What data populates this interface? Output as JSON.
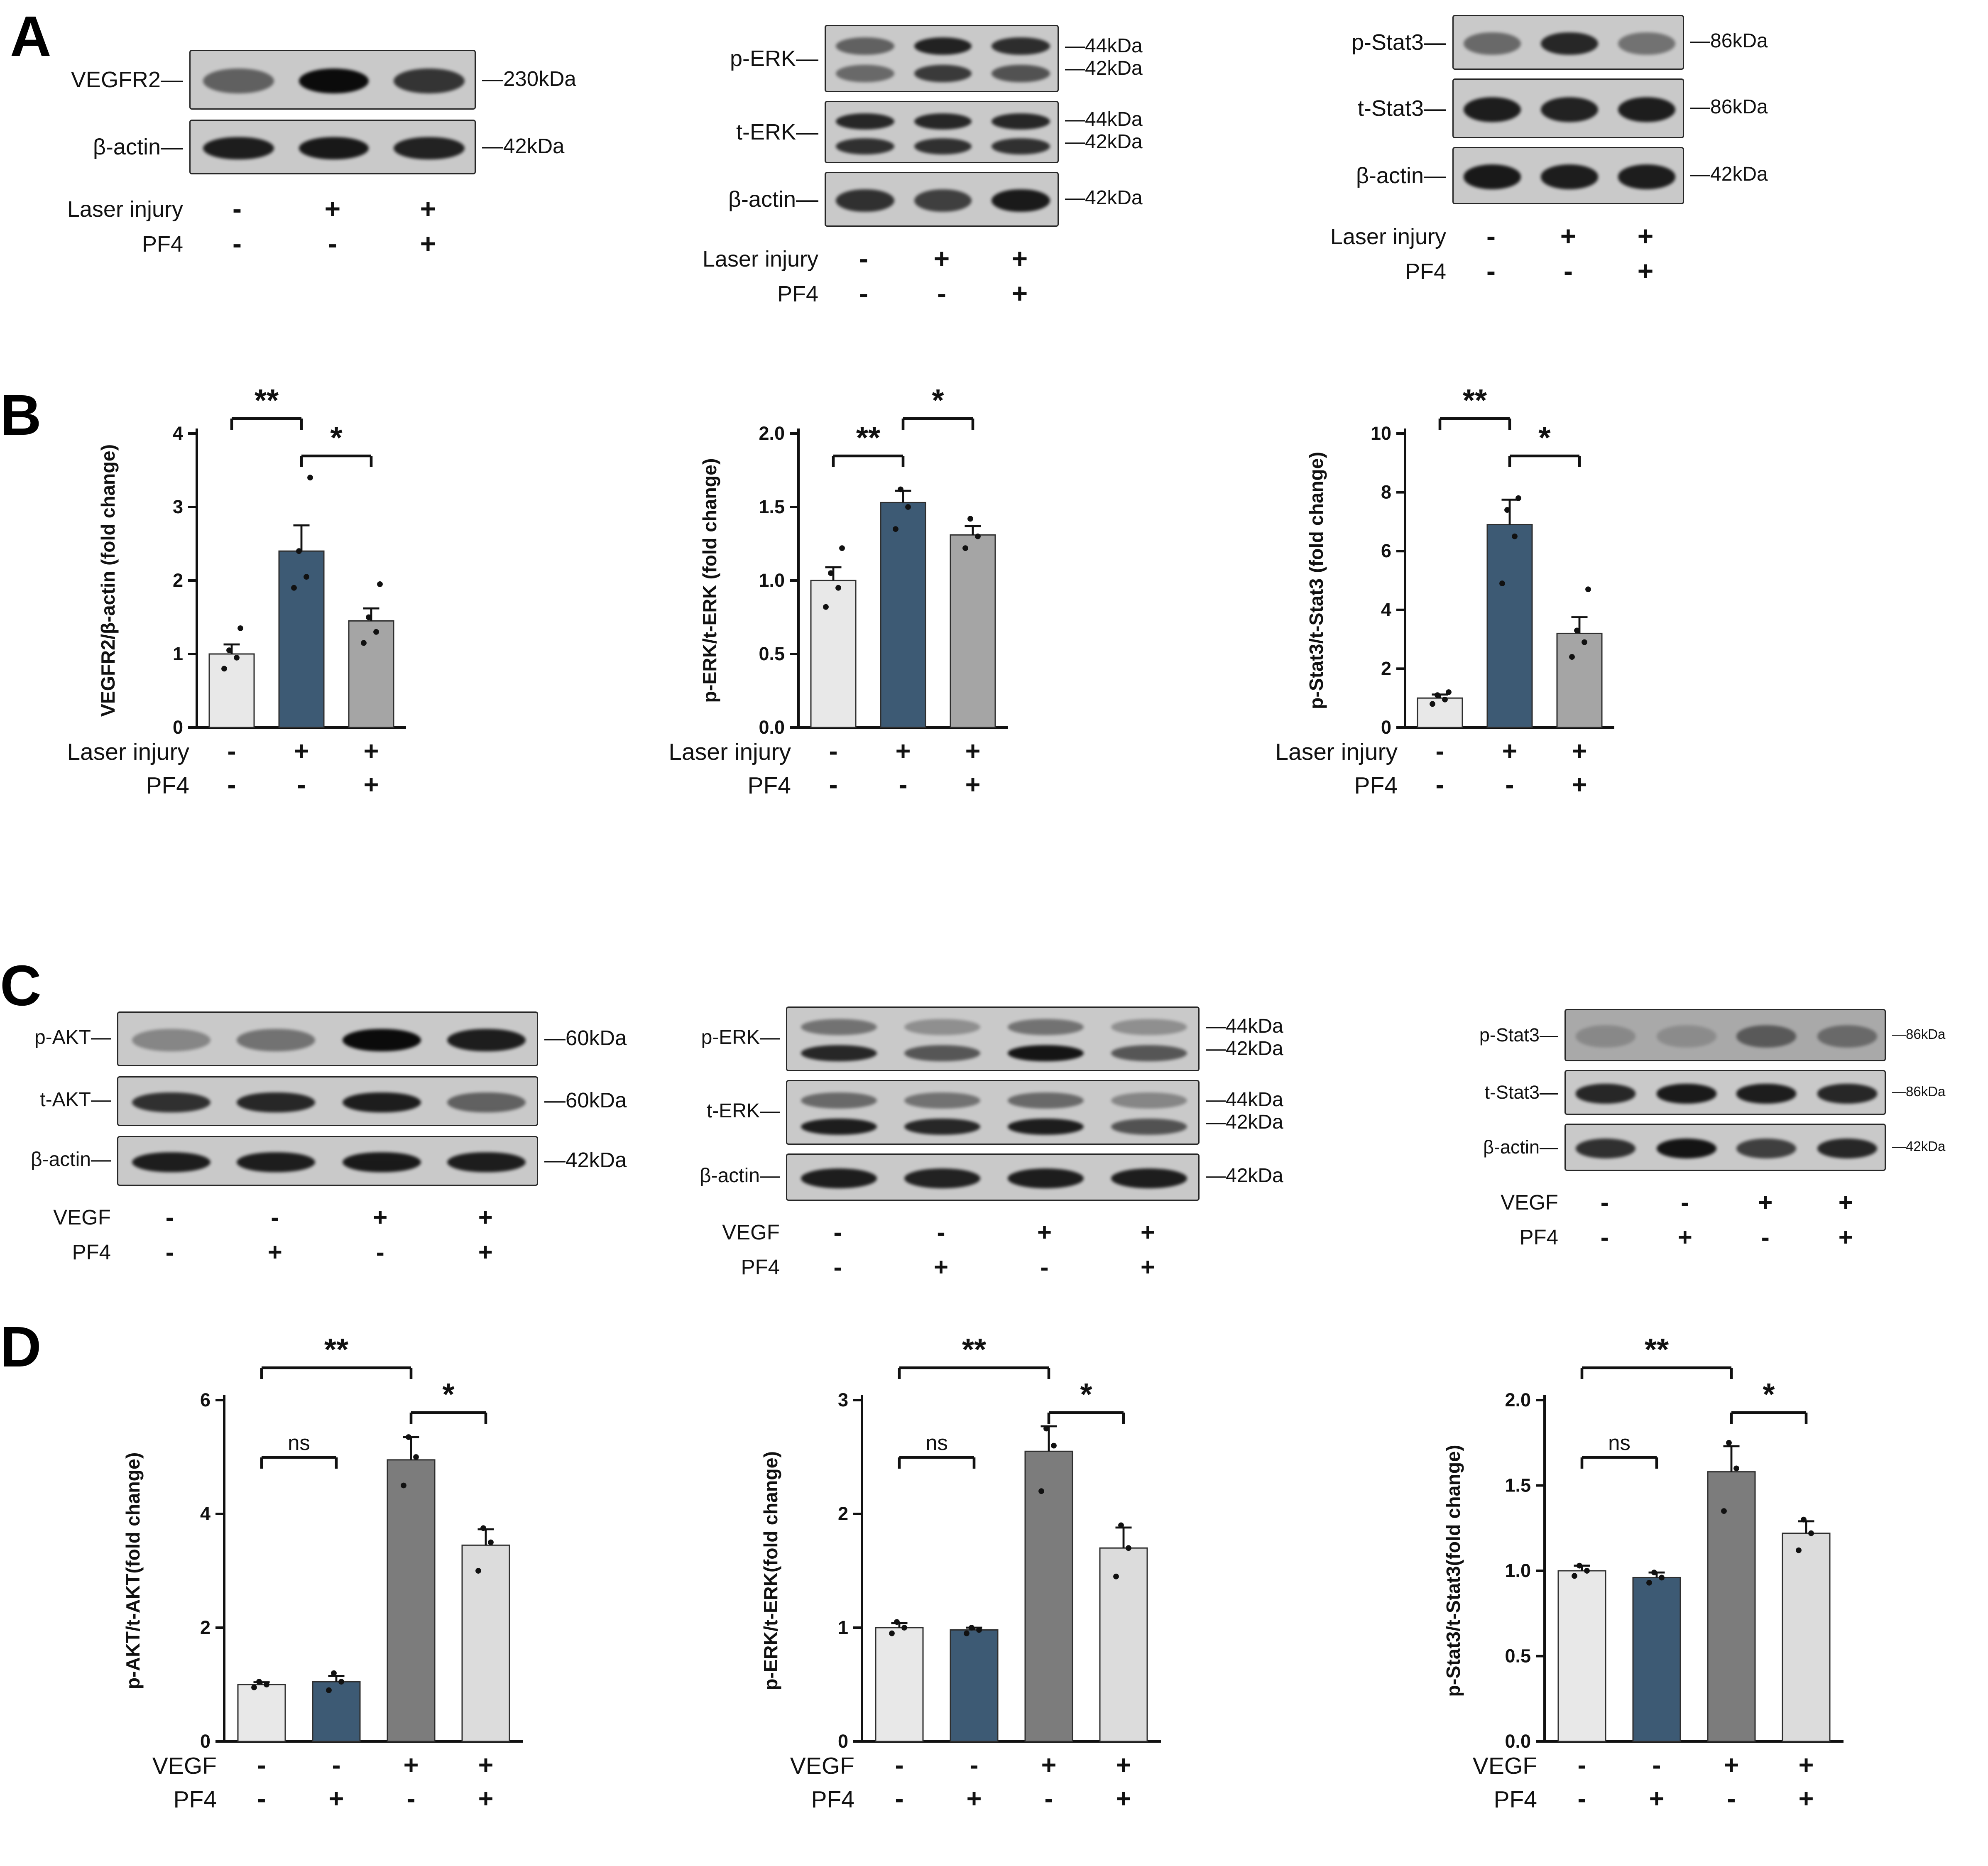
{
  "panel_labels": {
    "A": "A",
    "B": "B",
    "C": "C",
    "D": "D"
  },
  "western_blots": [
    {
      "name": "VEGFR2 laser injury blot",
      "rows": [
        {
          "label": "VEGFR2—",
          "kda": [
            "—230kDa"
          ],
          "band_intensities": [
            [
              0.55
            ],
            [
              1.0
            ],
            [
              0.78
            ]
          ]
        },
        {
          "label": "β-actin—",
          "kda": [
            "—42kDa"
          ],
          "band_intensities": [
            [
              0.9
            ],
            [
              0.93
            ],
            [
              0.88
            ]
          ]
        }
      ],
      "conditions": [
        {
          "name": "Laser injury",
          "values": [
            "-",
            "+",
            "+"
          ]
        },
        {
          "name": "PF4",
          "values": [
            "-",
            "-",
            "+"
          ]
        }
      ]
    },
    {
      "name": "ERK laser injury blot",
      "rows": [
        {
          "label": "p-ERK—",
          "kda": [
            "—44kDa",
            "—42kDa"
          ],
          "band_intensities": [
            [
              0.55,
              0.5
            ],
            [
              0.88,
              0.75
            ],
            [
              0.82,
              0.62
            ]
          ]
        },
        {
          "label": "t-ERK—",
          "kda": [
            "—44kDa",
            "—42kDa"
          ],
          "band_intensities": [
            [
              0.85,
              0.8
            ],
            [
              0.85,
              0.8
            ],
            [
              0.85,
              0.8
            ]
          ]
        },
        {
          "label": "β-actin—",
          "kda": [
            "—42kDa"
          ],
          "band_intensities": [
            [
              0.8
            ],
            [
              0.72
            ],
            [
              0.92
            ]
          ]
        }
      ],
      "conditions": [
        {
          "name": "Laser injury",
          "values": [
            "-",
            "+",
            "+"
          ]
        },
        {
          "name": "PF4",
          "values": [
            "-",
            "-",
            "+"
          ]
        }
      ]
    },
    {
      "name": "Stat3 laser injury blot",
      "rows": [
        {
          "label": "p-Stat3—",
          "kda": [
            "—86kDa"
          ],
          "band_intensities": [
            [
              0.5
            ],
            [
              0.85
            ],
            [
              0.45
            ]
          ]
        },
        {
          "label": "t-Stat3—",
          "kda": [
            "—86kDa"
          ],
          "band_intensities": [
            [
              0.9
            ],
            [
              0.88
            ],
            [
              0.9
            ]
          ]
        },
        {
          "label": "β-actin—",
          "kda": [
            "—42kDa"
          ],
          "band_intensities": [
            [
              0.92
            ],
            [
              0.9
            ],
            [
              0.9
            ]
          ]
        }
      ],
      "conditions": [
        {
          "name": "Laser injury",
          "values": [
            "-",
            "+",
            "+"
          ]
        },
        {
          "name": "PF4",
          "values": [
            "-",
            "-",
            "+"
          ]
        }
      ]
    },
    {
      "name": "AKT VEGF blot",
      "rows": [
        {
          "label": "p-AKT—",
          "kda": [
            "—60kDa"
          ],
          "band_intensities": [
            [
              0.35
            ],
            [
              0.45
            ],
            [
              1.0
            ],
            [
              0.9
            ]
          ]
        },
        {
          "label": "t-AKT—",
          "kda": [
            "—60kDa"
          ],
          "band_intensities": [
            [
              0.8
            ],
            [
              0.85
            ],
            [
              0.9
            ],
            [
              0.55
            ]
          ]
        },
        {
          "label": "β-actin—",
          "kda": [
            "—42kDa"
          ],
          "band_intensities": [
            [
              0.9
            ],
            [
              0.9
            ],
            [
              0.92
            ],
            [
              0.9
            ]
          ]
        }
      ],
      "conditions": [
        {
          "name": "VEGF",
          "values": [
            "-",
            "-",
            "+",
            "+"
          ]
        },
        {
          "name": "PF4",
          "values": [
            "-",
            "+",
            "-",
            "+"
          ]
        }
      ]
    },
    {
      "name": "ERK VEGF blot",
      "rows": [
        {
          "label": "p-ERK—",
          "kda": [
            "—44kDa",
            "—42kDa"
          ],
          "band_intensities": [
            [
              0.45,
              0.85
            ],
            [
              0.3,
              0.6
            ],
            [
              0.45,
              0.95
            ],
            [
              0.3,
              0.6
            ]
          ]
        },
        {
          "label": "t-ERK—",
          "kda": [
            "—44kDa",
            "—42kDa"
          ],
          "band_intensities": [
            [
              0.5,
              0.9
            ],
            [
              0.45,
              0.85
            ],
            [
              0.5,
              0.9
            ],
            [
              0.35,
              0.62
            ]
          ]
        },
        {
          "label": "β-actin—",
          "kda": [
            "—42kDa"
          ],
          "band_intensities": [
            [
              0.9
            ],
            [
              0.88
            ],
            [
              0.9
            ],
            [
              0.9
            ]
          ]
        }
      ],
      "conditions": [
        {
          "name": "VEGF",
          "values": [
            "-",
            "-",
            "+",
            "+"
          ]
        },
        {
          "name": "PF4",
          "values": [
            "-",
            "+",
            "-",
            "+"
          ]
        }
      ]
    },
    {
      "name": "Stat3 VEGF blot",
      "rows": [
        {
          "label": "p-Stat3—",
          "kda": [
            "—86kDa"
          ],
          "band_intensities": [
            [
              0.2
            ],
            [
              0.18
            ],
            [
              0.5
            ],
            [
              0.4
            ]
          ]
        },
        {
          "label": "t-Stat3—",
          "kda": [
            "—86kDa"
          ],
          "band_intensities": [
            [
              0.85
            ],
            [
              0.92
            ],
            [
              0.9
            ],
            [
              0.85
            ]
          ]
        },
        {
          "label": "β-actin—",
          "kda": [
            "—42kDa"
          ],
          "band_intensities": [
            [
              0.8
            ],
            [
              0.95
            ],
            [
              0.72
            ],
            [
              0.85
            ]
          ]
        }
      ],
      "conditions": [
        {
          "name": "VEGF",
          "values": [
            "-",
            "-",
            "+",
            "+"
          ]
        },
        {
          "name": "PF4",
          "values": [
            "-",
            "+",
            "-",
            "+"
          ]
        }
      ]
    }
  ],
  "chart_data": [
    {
      "panel": "B",
      "type": "bar",
      "ylabel": "VEGFR2/β-actin (fold change)",
      "values": [
        1.0,
        2.4,
        1.45
      ],
      "errors": [
        0.13,
        0.35,
        0.17
      ],
      "points": [
        [
          0.8,
          0.95,
          1.05,
          1.35
        ],
        [
          1.9,
          2.05,
          2.4,
          3.4
        ],
        [
          1.15,
          1.3,
          1.5,
          1.95
        ]
      ],
      "ylim": [
        0,
        4
      ],
      "yticks": [
        0,
        1,
        2,
        3,
        4
      ],
      "ytick_labels": [
        "0",
        "1",
        "2",
        "3",
        "4"
      ],
      "bar_colors": [
        "#e8e8e8",
        "#3d5a74",
        "#a5a5a5"
      ],
      "significance": [
        {
          "from": 0,
          "to": 1,
          "label": "**",
          "level": 1
        },
        {
          "from": 1,
          "to": 2,
          "label": "*",
          "level": 0
        }
      ],
      "condition_rows": [
        {
          "name": "Laser injury",
          "values": [
            "-",
            "+",
            "+"
          ]
        },
        {
          "name": "PF4",
          "values": [
            "-",
            "-",
            "+"
          ]
        }
      ]
    },
    {
      "panel": "B",
      "type": "bar",
      "ylabel": "p-ERK/t-ERK (fold change)",
      "values": [
        1.0,
        1.53,
        1.31
      ],
      "errors": [
        0.09,
        0.08,
        0.06
      ],
      "points": [
        [
          0.82,
          0.95,
          1.05,
          1.22
        ],
        [
          1.35,
          1.5,
          1.62
        ],
        [
          1.22,
          1.3,
          1.42
        ]
      ],
      "ylim": [
        0,
        2
      ],
      "yticks": [
        0,
        0.5,
        1.0,
        1.5,
        2.0
      ],
      "ytick_labels": [
        "0.0",
        "0.5",
        "1.0",
        "1.5",
        "2.0"
      ],
      "bar_colors": [
        "#e8e8e8",
        "#3d5a74",
        "#a5a5a5"
      ],
      "significance": [
        {
          "from": 0,
          "to": 1,
          "label": "**",
          "level": 0
        },
        {
          "from": 1,
          "to": 2,
          "label": "*",
          "level": 1
        }
      ],
      "condition_rows": [
        {
          "name": "Laser injury",
          "values": [
            "-",
            "+",
            "+"
          ]
        },
        {
          "name": "PF4",
          "values": [
            "-",
            "-",
            "+"
          ]
        }
      ]
    },
    {
      "panel": "B",
      "type": "bar",
      "ylabel": "p-Stat3/t-Stat3 (fold change)",
      "values": [
        1.0,
        6.9,
        3.2
      ],
      "errors": [
        0.12,
        0.85,
        0.55
      ],
      "points": [
        [
          0.8,
          0.95,
          1.1,
          1.2
        ],
        [
          4.9,
          6.5,
          7.4,
          7.8
        ],
        [
          2.4,
          2.9,
          3.3,
          4.7
        ]
      ],
      "ylim": [
        0,
        10
      ],
      "yticks": [
        0,
        2,
        4,
        6,
        8,
        10
      ],
      "ytick_labels": [
        "0",
        "2",
        "4",
        "6",
        "8",
        "10"
      ],
      "bar_colors": [
        "#e8e8e8",
        "#3d5a74",
        "#a5a5a5"
      ],
      "significance": [
        {
          "from": 0,
          "to": 1,
          "label": "**",
          "level": 1
        },
        {
          "from": 1,
          "to": 2,
          "label": "*",
          "level": 0
        }
      ],
      "condition_rows": [
        {
          "name": "Laser injury",
          "values": [
            "-",
            "+",
            "+"
          ]
        },
        {
          "name": "PF4",
          "values": [
            "-",
            "-",
            "+"
          ]
        }
      ]
    },
    {
      "panel": "D",
      "type": "bar",
      "ylabel": "p-AKT/t-AKT(fold change)",
      "values": [
        1.0,
        1.05,
        4.95,
        3.45
      ],
      "errors": [
        0.04,
        0.1,
        0.4,
        0.28
      ],
      "points": [
        [
          0.95,
          1.0,
          1.05
        ],
        [
          0.9,
          1.05,
          1.2
        ],
        [
          4.5,
          5.0,
          5.35
        ],
        [
          3.0,
          3.5,
          3.75
        ]
      ],
      "ylim": [
        0,
        6
      ],
      "yticks": [
        0,
        2,
        4,
        6
      ],
      "ytick_labels": [
        "0",
        "2",
        "4",
        "6"
      ],
      "bar_colors": [
        "#e8e8e8",
        "#3d5a74",
        "#7c7c7c",
        "#dcdcdc"
      ],
      "significance": [
        {
          "from": 0,
          "to": 1,
          "label": "ns",
          "level": 0
        },
        {
          "from": 0,
          "to": 2,
          "label": "**",
          "level": 2
        },
        {
          "from": 2,
          "to": 3,
          "label": "*",
          "level": 1
        }
      ],
      "condition_rows": [
        {
          "name": "VEGF",
          "values": [
            "-",
            "-",
            "+",
            "+"
          ]
        },
        {
          "name": "PF4",
          "values": [
            "-",
            "+",
            "-",
            "+"
          ]
        }
      ]
    },
    {
      "panel": "D",
      "type": "bar",
      "ylabel": "p-ERK/t-ERK(fold change)",
      "values": [
        1.0,
        0.98,
        2.55,
        1.7
      ],
      "errors": [
        0.04,
        0.02,
        0.22,
        0.18
      ],
      "points": [
        [
          0.95,
          1.0,
          1.05
        ],
        [
          0.95,
          0.98,
          1.0
        ],
        [
          2.2,
          2.6,
          2.75
        ],
        [
          1.45,
          1.7,
          1.9
        ]
      ],
      "ylim": [
        0,
        3
      ],
      "yticks": [
        0,
        1,
        2,
        3
      ],
      "ytick_labels": [
        "0",
        "1",
        "2",
        "3"
      ],
      "bar_colors": [
        "#e8e8e8",
        "#3d5a74",
        "#7c7c7c",
        "#dcdcdc"
      ],
      "significance": [
        {
          "from": 0,
          "to": 1,
          "label": "ns",
          "level": 0
        },
        {
          "from": 0,
          "to": 2,
          "label": "**",
          "level": 2
        },
        {
          "from": 2,
          "to": 3,
          "label": "*",
          "level": 1
        }
      ],
      "condition_rows": [
        {
          "name": "VEGF",
          "values": [
            "-",
            "-",
            "+",
            "+"
          ]
        },
        {
          "name": "PF4",
          "values": [
            "-",
            "+",
            "-",
            "+"
          ]
        }
      ]
    },
    {
      "panel": "D",
      "type": "bar",
      "ylabel": "p-Stat3/t-Stat3(fold change)",
      "values": [
        1.0,
        0.96,
        1.58,
        1.22
      ],
      "errors": [
        0.03,
        0.03,
        0.15,
        0.07
      ],
      "points": [
        [
          0.97,
          1.0,
          1.03
        ],
        [
          0.93,
          0.96,
          0.99
        ],
        [
          1.35,
          1.6,
          1.75
        ],
        [
          1.12,
          1.22,
          1.3
        ]
      ],
      "ylim": [
        0,
        2
      ],
      "yticks": [
        0,
        0.5,
        1.0,
        1.5,
        2.0
      ],
      "ytick_labels": [
        "0.0",
        "0.5",
        "1.0",
        "1.5",
        "2.0"
      ],
      "bar_colors": [
        "#e8e8e8",
        "#3d5a74",
        "#7c7c7c",
        "#dcdcdc"
      ],
      "significance": [
        {
          "from": 0,
          "to": 1,
          "label": "ns",
          "level": 0
        },
        {
          "from": 0,
          "to": 2,
          "label": "**",
          "level": 2
        },
        {
          "from": 2,
          "to": 3,
          "label": "*",
          "level": 1
        }
      ],
      "condition_rows": [
        {
          "name": "VEGF",
          "values": [
            "-",
            "-",
            "+",
            "+"
          ]
        },
        {
          "name": "PF4",
          "values": [
            "-",
            "+",
            "-",
            "+"
          ]
        }
      ]
    }
  ]
}
